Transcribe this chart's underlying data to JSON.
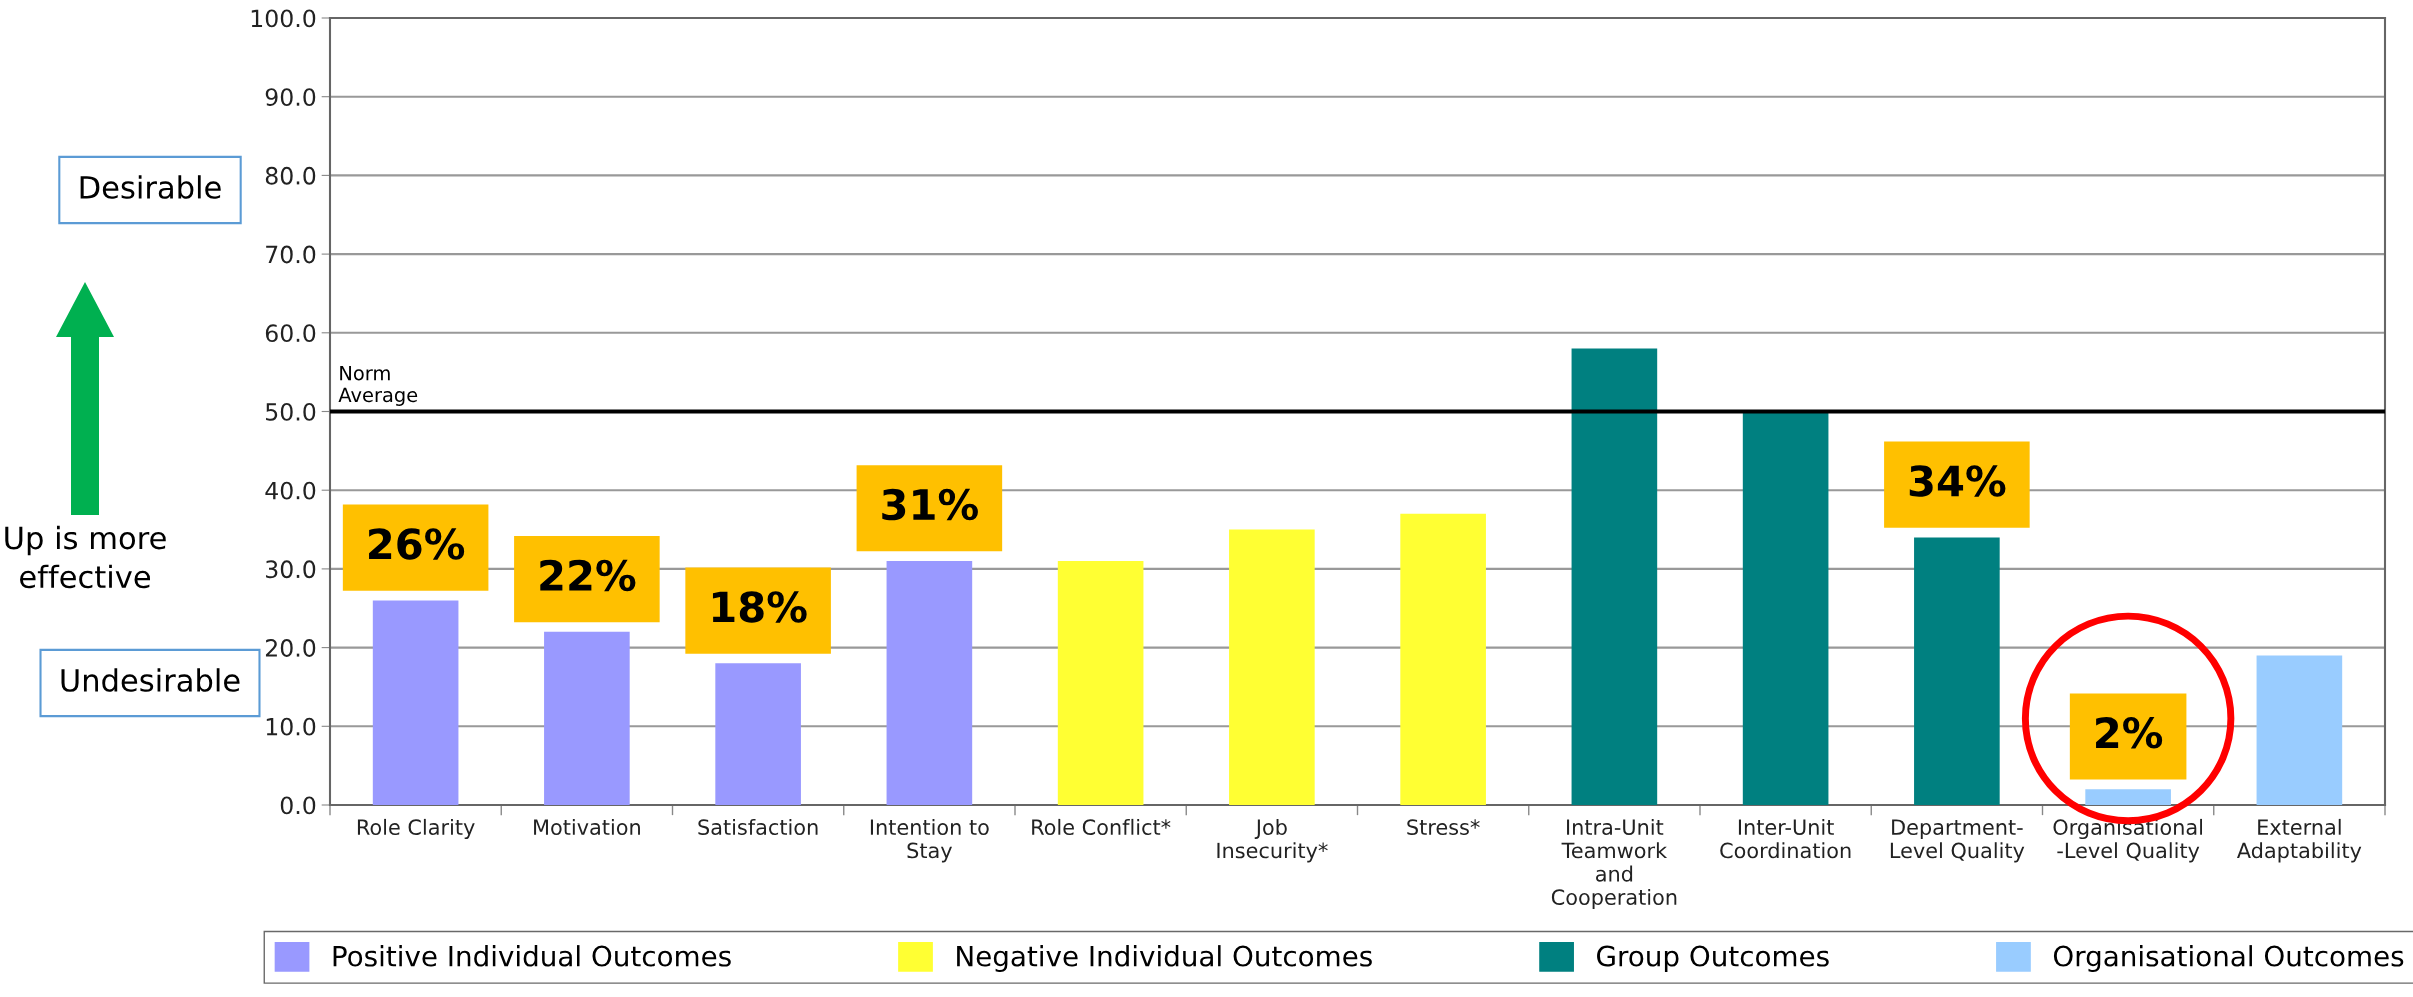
{
  "chart_data": {
    "type": "bar",
    "stacked": true,
    "categories": [
      "Role Clarity",
      "Motivation",
      "Satisfaction",
      "Intention to\nStay",
      "Role Conflict*",
      "Job\nInsecurity*",
      "Stress*",
      "Intra-Unit\nTeamwork\nand\nCooperation",
      "Inter-Unit\nCoordination",
      "Department-\nLevel Quality",
      "Organisational\n-Level Quality",
      "External\nAdaptability"
    ],
    "series": [
      {
        "name": "Positive Individual Outcomes",
        "color": "#9999ff",
        "values": [
          26,
          22,
          18,
          31,
          null,
          null,
          null,
          null,
          null,
          null,
          null,
          null
        ],
        "value_labels": [
          "26%",
          "22%",
          "18%",
          "31%",
          null,
          null,
          null,
          null,
          null,
          null,
          null,
          null
        ]
      },
      {
        "name": "Negative Individual Outcomes",
        "color": "#ffff33",
        "values": [
          null,
          null,
          null,
          null,
          31,
          35,
          37,
          null,
          null,
          null,
          null,
          null
        ]
      },
      {
        "name": "Group Outcomes",
        "color": "#008080",
        "values": [
          null,
          null,
          null,
          null,
          null,
          null,
          null,
          58,
          50,
          34,
          null,
          null
        ],
        "value_labels": [
          null,
          null,
          null,
          null,
          null,
          null,
          null,
          null,
          null,
          "34%",
          null,
          null
        ]
      },
      {
        "name": "Organisational Outcomes",
        "color": "#99ccff",
        "values": [
          null,
          null,
          null,
          null,
          null,
          null,
          null,
          null,
          null,
          null,
          2,
          19
        ],
        "value_labels": [
          null,
          null,
          null,
          null,
          null,
          null,
          null,
          null,
          null,
          null,
          "2%",
          null
        ]
      }
    ],
    "ylim": [
      0,
      100
    ],
    "yticks": [
      {
        "value": 0,
        "label": "0.0"
      },
      {
        "value": 10,
        "label": "10.0"
      },
      {
        "value": 20,
        "label": "20.0"
      },
      {
        "value": 30,
        "label": "30.0"
      },
      {
        "value": 40,
        "label": "40.0"
      },
      {
        "value": 50,
        "label": "50.0"
      },
      {
        "value": 60,
        "label": "60.0"
      },
      {
        "value": 70,
        "label": "70.0"
      },
      {
        "value": 80,
        "label": "80.0"
      },
      {
        "value": 90,
        "label": "90.0"
      },
      {
        "value": 100,
        "label": "100.0"
      }
    ],
    "grid": "y",
    "ref_lines": [
      {
        "axis": "y",
        "value": 50,
        "label": "Norm\nAverage",
        "color": "#000000"
      }
    ],
    "annotations": [
      "Desirable",
      "Up is more\neffective",
      "Undesirable"
    ],
    "legend": "bottom"
  }
}
